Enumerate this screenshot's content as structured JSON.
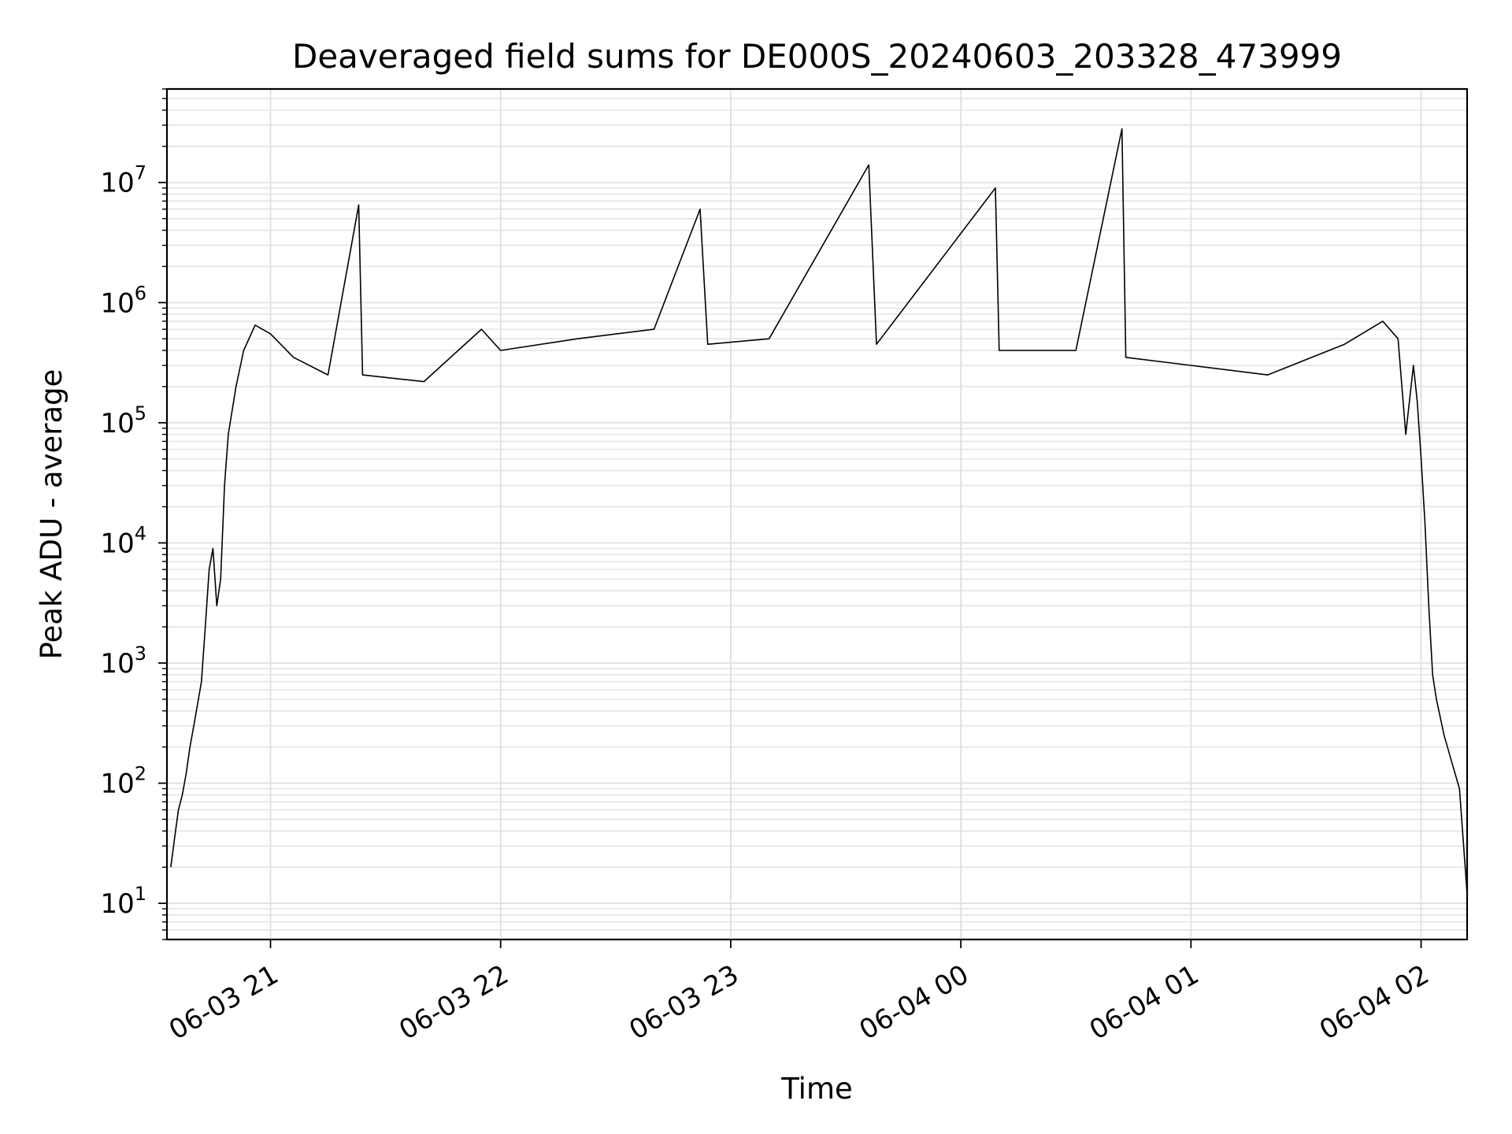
{
  "chart_data": {
    "type": "line",
    "title": "Deaveraged field sums for DE000S_20240603_203328_473999",
    "xlabel": "Time",
    "ylabel": "Peak ADU - average",
    "yscale": "log",
    "ylim": [
      5,
      60000000
    ],
    "xlim": [
      "2024-06-03 20:33",
      "2024-06-04 02:12"
    ],
    "grid": true,
    "x_ticks": [
      {
        "t": "2024-06-03 21:00",
        "label": "06-03 21"
      },
      {
        "t": "2024-06-03 22:00",
        "label": "06-03 22"
      },
      {
        "t": "2024-06-03 23:00",
        "label": "06-03 23"
      },
      {
        "t": "2024-06-04 00:00",
        "label": "06-04 00"
      },
      {
        "t": "2024-06-04 01:00",
        "label": "06-04 01"
      },
      {
        "t": "2024-06-04 02:00",
        "label": "06-04 02"
      }
    ],
    "y_ticks": [
      {
        "value": 10,
        "base": "10",
        "exp": "1"
      },
      {
        "value": 100,
        "base": "10",
        "exp": "2"
      },
      {
        "value": 1000,
        "base": "10",
        "exp": "3"
      },
      {
        "value": 10000,
        "base": "10",
        "exp": "4"
      },
      {
        "value": 100000,
        "base": "10",
        "exp": "5"
      },
      {
        "value": 1000000,
        "base": "10",
        "exp": "6"
      },
      {
        "value": 10000000,
        "base": "10",
        "exp": "7"
      }
    ],
    "series": [
      {
        "color": "#000000",
        "points": [
          [
            "2024-06-03 20:34",
            20
          ],
          [
            "2024-06-03 20:35",
            35
          ],
          [
            "2024-06-03 20:36",
            60
          ],
          [
            "2024-06-03 20:37",
            80
          ],
          [
            "2024-06-03 20:38",
            120
          ],
          [
            "2024-06-03 20:39",
            200
          ],
          [
            "2024-06-03 20:40",
            300
          ],
          [
            "2024-06-03 20:42",
            700
          ],
          [
            "2024-06-03 20:43",
            2000
          ],
          [
            "2024-06-03 20:44",
            6000
          ],
          [
            "2024-06-03 20:45",
            9000
          ],
          [
            "2024-06-03 20:46",
            3000
          ],
          [
            "2024-06-03 20:47",
            5000
          ],
          [
            "2024-06-03 20:48",
            30000
          ],
          [
            "2024-06-03 20:49",
            80000
          ],
          [
            "2024-06-03 20:51",
            200000
          ],
          [
            "2024-06-03 20:53",
            400000
          ],
          [
            "2024-06-03 20:56",
            650000
          ],
          [
            "2024-06-03 21:00",
            550000
          ],
          [
            "2024-06-03 21:06",
            350000
          ],
          [
            "2024-06-03 21:15",
            250000
          ],
          [
            "2024-06-03 21:23",
            6500000
          ],
          [
            "2024-06-03 21:24",
            250000
          ],
          [
            "2024-06-03 21:40",
            220000
          ],
          [
            "2024-06-03 21:55",
            600000
          ],
          [
            "2024-06-03 22:00",
            400000
          ],
          [
            "2024-06-03 22:20",
            500000
          ],
          [
            "2024-06-03 22:40",
            600000
          ],
          [
            "2024-06-03 22:52",
            6000000
          ],
          [
            "2024-06-03 22:54",
            450000
          ],
          [
            "2024-06-03 23:10",
            500000
          ],
          [
            "2024-06-03 23:36",
            14000000
          ],
          [
            "2024-06-03 23:38",
            450000
          ],
          [
            "2024-06-04 00:09",
            9000000
          ],
          [
            "2024-06-04 00:10",
            400000
          ],
          [
            "2024-06-04 00:30",
            400000
          ],
          [
            "2024-06-04 00:42",
            28000000
          ],
          [
            "2024-06-04 00:43",
            350000
          ],
          [
            "2024-06-04 01:00",
            300000
          ],
          [
            "2024-06-04 01:20",
            250000
          ],
          [
            "2024-06-04 01:40",
            450000
          ],
          [
            "2024-06-04 01:50",
            700000
          ],
          [
            "2024-06-04 01:54",
            500000
          ],
          [
            "2024-06-04 01:56",
            80000
          ],
          [
            "2024-06-04 01:58",
            300000
          ],
          [
            "2024-06-04 01:59",
            150000
          ],
          [
            "2024-06-04 02:00",
            50000
          ],
          [
            "2024-06-04 02:01",
            15000
          ],
          [
            "2024-06-04 02:02",
            3000
          ],
          [
            "2024-06-04 02:03",
            800
          ],
          [
            "2024-06-04 02:04",
            500
          ],
          [
            "2024-06-04 02:06",
            250
          ],
          [
            "2024-06-04 02:08",
            150
          ],
          [
            "2024-06-04 02:10",
            90
          ],
          [
            "2024-06-04 02:12",
            12
          ]
        ]
      }
    ]
  }
}
